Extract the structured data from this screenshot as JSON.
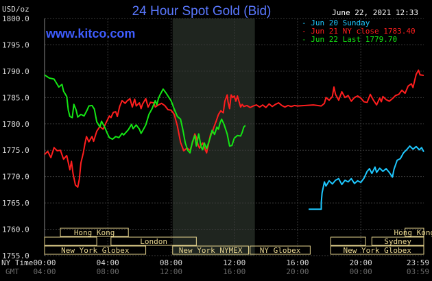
{
  "chart_data": {
    "type": "line",
    "title": "24 Hour Spot Gold (Bid)",
    "source": "www.kitco.com",
    "ylabel": "USD/oz",
    "timestamp": "June 22, 2021 12:33",
    "ylim": [
      1755,
      1800
    ],
    "y_ticks": [
      "1800.0",
      "1795.0",
      "1790.0",
      "1785.0",
      "1780.0",
      "1775.0",
      "1770.0",
      "1765.0",
      "1760.0",
      "1755.0"
    ],
    "y_tick_values": [
      1800,
      1795,
      1790,
      1785,
      1780,
      1775,
      1770,
      1765,
      1760,
      1755
    ],
    "x_row_label": "NY Time",
    "x_row2_label": "GMT",
    "x_ticks_ny": [
      "00:00",
      "04:00",
      "08:00",
      "12:00",
      "16:00",
      "20:00",
      "23:59"
    ],
    "x_ticks_gmt": [
      "04:00",
      "08:00",
      "12:00",
      "16:00",
      "20:00",
      "00:00",
      "03:59"
    ],
    "x_tick_hours": [
      0,
      4,
      8,
      12,
      16,
      20,
      23.983
    ],
    "shaded_session_hours": [
      8.1,
      13.3
    ],
    "legend": [
      "Jun 20 Sunday",
      "Jun 21 NY close 1783.40",
      "Jun 22 Last 1779.70"
    ],
    "series": [
      {
        "name": "Jun 20 Sunday",
        "color": "#1ec8ff",
        "points": [
          [
            16.7,
            1763.8
          ],
          [
            17.5,
            1763.8
          ],
          [
            17.5,
            1765.0
          ],
          [
            17.55,
            1766.9
          ],
          [
            17.7,
            1769.0
          ],
          [
            17.8,
            1768.2
          ],
          [
            18.0,
            1769.2
          ],
          [
            18.2,
            1768.6
          ],
          [
            18.4,
            1769.3
          ],
          [
            18.6,
            1769.6
          ],
          [
            18.8,
            1768.5
          ],
          [
            19.0,
            1769.3
          ],
          [
            19.2,
            1769.0
          ],
          [
            19.4,
            1769.6
          ],
          [
            19.6,
            1768.7
          ],
          [
            19.8,
            1769.2
          ],
          [
            20.0,
            1768.9
          ],
          [
            20.2,
            1769.7
          ],
          [
            20.4,
            1771.0
          ],
          [
            20.55,
            1771.5
          ],
          [
            20.7,
            1770.6
          ],
          [
            20.9,
            1771.8
          ],
          [
            21.0,
            1770.8
          ],
          [
            21.2,
            1771.6
          ],
          [
            21.4,
            1771.0
          ],
          [
            21.6,
            1771.5
          ],
          [
            21.8,
            1770.8
          ],
          [
            22.0,
            1769.9
          ],
          [
            22.1,
            1771.4
          ],
          [
            22.3,
            1773.1
          ],
          [
            22.5,
            1773.4
          ],
          [
            22.7,
            1774.5
          ],
          [
            22.9,
            1775.1
          ],
          [
            23.1,
            1775.8
          ],
          [
            23.3,
            1775.2
          ],
          [
            23.5,
            1775.7
          ],
          [
            23.7,
            1775.1
          ],
          [
            23.85,
            1775.5
          ],
          [
            23.983,
            1774.7
          ]
        ]
      },
      {
        "name": "Jun 21 NY close 1783.40",
        "color": "#ff1e1e",
        "points": [
          [
            0.0,
            1774.2
          ],
          [
            0.2,
            1774.8
          ],
          [
            0.4,
            1773.6
          ],
          [
            0.6,
            1775.5
          ],
          [
            0.8,
            1774.9
          ],
          [
            1.0,
            1775.0
          ],
          [
            1.2,
            1773.3
          ],
          [
            1.4,
            1774.0
          ],
          [
            1.6,
            1771.3
          ],
          [
            1.7,
            1772.9
          ],
          [
            1.8,
            1770.6
          ],
          [
            1.95,
            1768.4
          ],
          [
            2.1,
            1768.0
          ],
          [
            2.2,
            1769.5
          ],
          [
            2.3,
            1772.6
          ],
          [
            2.45,
            1774.5
          ],
          [
            2.55,
            1776.2
          ],
          [
            2.65,
            1777.6
          ],
          [
            2.8,
            1776.6
          ],
          [
            3.0,
            1777.6
          ],
          [
            3.1,
            1776.7
          ],
          [
            3.3,
            1778.6
          ],
          [
            3.5,
            1779.5
          ],
          [
            3.7,
            1779.0
          ],
          [
            3.85,
            1780.0
          ],
          [
            4.0,
            1780.9
          ],
          [
            4.1,
            1781.5
          ],
          [
            4.2,
            1781.2
          ],
          [
            4.35,
            1782.2
          ],
          [
            4.5,
            1782.3
          ],
          [
            4.6,
            1781.4
          ],
          [
            4.75,
            1783.3
          ],
          [
            4.9,
            1784.4
          ],
          [
            5.1,
            1783.9
          ],
          [
            5.2,
            1784.3
          ],
          [
            5.4,
            1784.8
          ],
          [
            5.55,
            1783.2
          ],
          [
            5.7,
            1784.7
          ],
          [
            5.8,
            1783.4
          ],
          [
            6.0,
            1784.0
          ],
          [
            6.1,
            1782.9
          ],
          [
            6.2,
            1783.8
          ],
          [
            6.4,
            1784.8
          ],
          [
            6.55,
            1783.2
          ],
          [
            6.7,
            1784.1
          ],
          [
            6.9,
            1784.0
          ],
          [
            7.0,
            1783.2
          ],
          [
            7.2,
            1783.6
          ],
          [
            7.4,
            1783.9
          ],
          [
            7.6,
            1783.5
          ],
          [
            7.8,
            1782.7
          ],
          [
            8.0,
            1782.6
          ],
          [
            8.2,
            1781.8
          ],
          [
            8.4,
            1779.6
          ],
          [
            8.6,
            1776.5
          ],
          [
            8.8,
            1774.9
          ],
          [
            9.0,
            1775.4
          ],
          [
            9.2,
            1775.0
          ],
          [
            9.4,
            1776.8
          ],
          [
            9.5,
            1778.1
          ],
          [
            9.6,
            1777.4
          ],
          [
            9.7,
            1776.1
          ],
          [
            9.8,
            1775.4
          ],
          [
            10.0,
            1776.4
          ],
          [
            10.1,
            1775.6
          ],
          [
            10.25,
            1774.5
          ],
          [
            10.4,
            1776.6
          ],
          [
            10.5,
            1778.1
          ],
          [
            10.6,
            1778.3
          ],
          [
            10.7,
            1779.3
          ],
          [
            10.85,
            1780.5
          ],
          [
            11.0,
            1781.8
          ],
          [
            11.15,
            1782.5
          ],
          [
            11.3,
            1782.1
          ],
          [
            11.4,
            1784.3
          ],
          [
            11.55,
            1785.5
          ],
          [
            11.6,
            1784.2
          ],
          [
            11.7,
            1782.9
          ],
          [
            11.8,
            1785.5
          ],
          [
            11.9,
            1785.0
          ],
          [
            12.0,
            1785.3
          ],
          [
            12.1,
            1784.3
          ],
          [
            12.2,
            1785.3
          ],
          [
            12.4,
            1783.2
          ],
          [
            12.5,
            1783.7
          ],
          [
            12.6,
            1783.3
          ],
          [
            12.8,
            1783.5
          ],
          [
            13.0,
            1783.1
          ],
          [
            13.2,
            1783.4
          ],
          [
            13.4,
            1783.6
          ],
          [
            13.6,
            1783.2
          ],
          [
            13.8,
            1783.6
          ],
          [
            14.0,
            1783.1
          ],
          [
            14.2,
            1783.8
          ],
          [
            14.4,
            1783.3
          ],
          [
            14.6,
            1783.7
          ],
          [
            14.8,
            1784.0
          ],
          [
            15.0,
            1783.5
          ],
          [
            15.2,
            1783.2
          ],
          [
            15.4,
            1783.5
          ],
          [
            15.6,
            1783.3
          ],
          [
            15.8,
            1783.5
          ],
          [
            16.0,
            1783.4
          ],
          [
            16.5,
            1783.5
          ],
          [
            17.0,
            1783.6
          ],
          [
            17.5,
            1783.4
          ],
          [
            17.7,
            1783.9
          ],
          [
            17.8,
            1785.0
          ],
          [
            18.0,
            1784.5
          ],
          [
            18.2,
            1785.2
          ],
          [
            18.3,
            1787.0
          ],
          [
            18.4,
            1785.6
          ],
          [
            18.6,
            1784.5
          ],
          [
            18.8,
            1786.1
          ],
          [
            19.0,
            1785.0
          ],
          [
            19.2,
            1785.4
          ],
          [
            19.4,
            1784.3
          ],
          [
            19.6,
            1785.0
          ],
          [
            19.8,
            1785.3
          ],
          [
            20.0,
            1784.9
          ],
          [
            20.2,
            1784.2
          ],
          [
            20.4,
            1784.1
          ],
          [
            20.6,
            1785.6
          ],
          [
            20.8,
            1784.5
          ],
          [
            21.0,
            1783.6
          ],
          [
            21.2,
            1784.9
          ],
          [
            21.3,
            1784.2
          ],
          [
            21.4,
            1785.2
          ],
          [
            21.6,
            1784.6
          ],
          [
            21.8,
            1784.3
          ],
          [
            22.0,
            1784.8
          ],
          [
            22.2,
            1785.4
          ],
          [
            22.4,
            1785.6
          ],
          [
            22.6,
            1786.4
          ],
          [
            22.8,
            1785.8
          ],
          [
            23.0,
            1787.2
          ],
          [
            23.2,
            1787.6
          ],
          [
            23.3,
            1786.9
          ],
          [
            23.5,
            1789.4
          ],
          [
            23.65,
            1790.2
          ],
          [
            23.75,
            1789.3
          ],
          [
            23.983,
            1789.2
          ]
        ]
      },
      {
        "name": "Jun 22 Last 1779.70",
        "color": "#14e614",
        "points": [
          [
            0.0,
            1789.3
          ],
          [
            0.3,
            1788.7
          ],
          [
            0.6,
            1788.5
          ],
          [
            0.9,
            1787.0
          ],
          [
            1.1,
            1787.5
          ],
          [
            1.2,
            1786.2
          ],
          [
            1.4,
            1785.2
          ],
          [
            1.5,
            1782.6
          ],
          [
            1.6,
            1781.4
          ],
          [
            1.75,
            1781.2
          ],
          [
            1.85,
            1783.7
          ],
          [
            2.0,
            1782.6
          ],
          [
            2.1,
            1781.3
          ],
          [
            2.3,
            1781.8
          ],
          [
            2.5,
            1781.5
          ],
          [
            2.7,
            1782.7
          ],
          [
            2.8,
            1783.4
          ],
          [
            3.0,
            1783.5
          ],
          [
            3.15,
            1782.8
          ],
          [
            3.3,
            1780.4
          ],
          [
            3.5,
            1779.4
          ],
          [
            3.6,
            1780.5
          ],
          [
            3.8,
            1779.4
          ],
          [
            3.95,
            1778.3
          ],
          [
            4.1,
            1777.4
          ],
          [
            4.3,
            1777.1
          ],
          [
            4.5,
            1777.6
          ],
          [
            4.7,
            1777.4
          ],
          [
            4.9,
            1778.2
          ],
          [
            5.0,
            1777.9
          ],
          [
            5.3,
            1778.9
          ],
          [
            5.5,
            1779.9
          ],
          [
            5.6,
            1779.1
          ],
          [
            5.8,
            1779.8
          ],
          [
            6.0,
            1779.0
          ],
          [
            6.1,
            1778.2
          ],
          [
            6.2,
            1778.7
          ],
          [
            6.4,
            1779.8
          ],
          [
            6.6,
            1781.8
          ],
          [
            6.8,
            1782.9
          ],
          [
            7.0,
            1784.4
          ],
          [
            7.1,
            1783.6
          ],
          [
            7.2,
            1784.8
          ],
          [
            7.3,
            1785.5
          ],
          [
            7.5,
            1786.6
          ],
          [
            7.7,
            1785.8
          ],
          [
            7.8,
            1785.3
          ],
          [
            8.0,
            1784.4
          ],
          [
            8.2,
            1782.8
          ],
          [
            8.4,
            1781.4
          ],
          [
            8.6,
            1780.9
          ],
          [
            8.75,
            1778.8
          ],
          [
            8.9,
            1776.4
          ],
          [
            9.05,
            1775.0
          ],
          [
            9.2,
            1774.5
          ],
          [
            9.35,
            1776.6
          ],
          [
            9.5,
            1777.8
          ],
          [
            9.6,
            1775.8
          ],
          [
            9.75,
            1778.1
          ],
          [
            9.9,
            1775.6
          ],
          [
            10.0,
            1775.1
          ],
          [
            10.1,
            1776.4
          ],
          [
            10.25,
            1775.3
          ],
          [
            10.4,
            1776.7
          ],
          [
            10.5,
            1777.6
          ],
          [
            10.6,
            1778.8
          ],
          [
            10.75,
            1778.0
          ],
          [
            10.9,
            1779.4
          ],
          [
            11.0,
            1779.0
          ],
          [
            11.1,
            1780.2
          ],
          [
            11.2,
            1780.9
          ],
          [
            11.35,
            1779.9
          ],
          [
            11.55,
            1778.1
          ],
          [
            11.7,
            1775.8
          ],
          [
            11.85,
            1775.9
          ],
          [
            12.0,
            1777.3
          ],
          [
            12.2,
            1777.8
          ],
          [
            12.4,
            1777.7
          ],
          [
            12.5,
            1778.4
          ],
          [
            12.6,
            1779.4
          ],
          [
            12.7,
            1779.7
          ]
        ]
      }
    ],
    "session_bars": [
      {
        "label": "Hong Kong",
        "side": "left"
      },
      {
        "label": "London",
        "side": "left"
      },
      {
        "label": "New York Globex",
        "side": "left"
      },
      {
        "label": "New York NYMEX",
        "side": "left"
      },
      {
        "label": "NY Globex",
        "side": "left"
      },
      {
        "label": "Hong Kong",
        "side": "right"
      },
      {
        "label": "Sydney",
        "side": "right"
      },
      {
        "label": "New York Globex",
        "side": "right"
      }
    ]
  }
}
